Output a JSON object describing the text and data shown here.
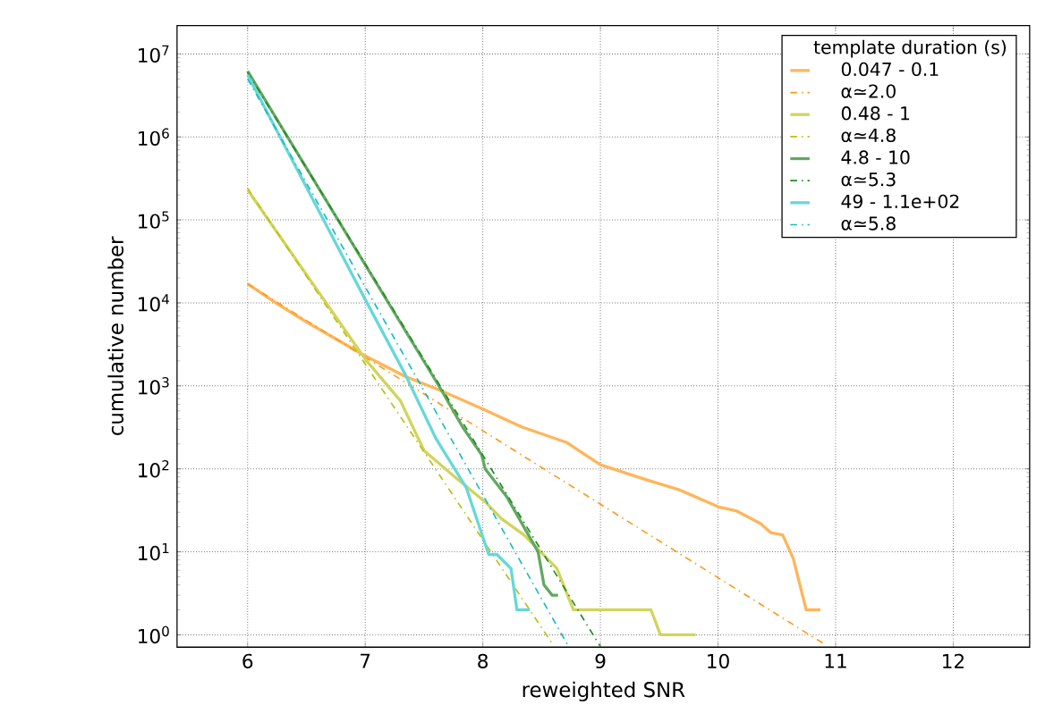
{
  "chart_data": {
    "type": "line",
    "xlabel": "reweighted SNR",
    "ylabel": "cumulative number",
    "legend_title": "template duration (s)",
    "log": "y",
    "grid": true,
    "legend": "top right",
    "xlim": [
      5.4,
      12.65
    ],
    "ylim": [
      0.71,
      22000000
    ],
    "xticks": [
      6,
      7,
      8,
      9,
      10,
      11,
      12
    ],
    "yticks": [
      {
        "value": 1,
        "label": "10$^{0}$"
      },
      {
        "value": 10,
        "label": "10$^{1}$"
      },
      {
        "value": 100,
        "label": "10$^{2}$"
      },
      {
        "value": 1000,
        "label": "10$^{3}$"
      },
      {
        "value": 10000,
        "label": "10$^{4}$"
      },
      {
        "value": 100000,
        "label": "10$^{5}$"
      },
      {
        "value": 1000000,
        "label": "10$^{6}$"
      },
      {
        "value": 10000000,
        "label": "10$^{7}$"
      }
    ],
    "series": [
      {
        "name": "0.047 - 0.1",
        "color": "#ffb55a",
        "line_style": "solid",
        "x": [
          6,
          6.25,
          6.5,
          7,
          7.34,
          7.65,
          8,
          8.33,
          8.71,
          9,
          9.39,
          9.67,
          10,
          10.16,
          10.36,
          10.45,
          10.55,
          10.64,
          10.75,
          10.87
        ],
        "values": [
          17000,
          9800,
          5900,
          2300,
          1300,
          870,
          525,
          320,
          209,
          112,
          74,
          56,
          35,
          31,
          22,
          17,
          16,
          8.3,
          2,
          2
        ]
      },
      {
        "name": "α≃2.0",
        "color": "#ff9a1a",
        "line_style": "dashed",
        "x": [
          6,
          10.9
        ],
        "values": [
          17000,
          0.78
        ]
      },
      {
        "name": "0.48 - 1",
        "color": "#d2d45c",
        "line_style": "solid",
        "x": [
          6,
          7,
          7.3,
          7.5,
          7.79,
          8.02,
          8.16,
          8.35,
          8.63,
          8.77,
          9.43,
          9.51,
          9.81
        ],
        "values": [
          230000,
          2100,
          660,
          166,
          74,
          40,
          25,
          16,
          6.3,
          2,
          2,
          1,
          1
        ]
      },
      {
        "name": "α≃4.8",
        "color": "#bdbf10",
        "line_style": "dashed",
        "x": [
          6,
          8.6
        ],
        "values": [
          240000,
          0.75
        ]
      },
      {
        "name": "4.8 - 10",
        "color": "#62a862",
        "line_style": "solid",
        "x": [
          6,
          7.64,
          7.83,
          7.99,
          8.02,
          8.2,
          8.47,
          8.52,
          8.59,
          8.64
        ],
        "values": [
          6200000,
          930,
          316,
          148,
          100,
          47,
          10,
          4,
          3,
          3
        ]
      },
      {
        "name": "α≃5.3",
        "color": "#1f8c1f",
        "line_style": "dashed",
        "x": [
          6,
          9.0
        ],
        "values": [
          6000000,
          0.72
        ]
      },
      {
        "name": "49 - 1.1e+02",
        "color": "#66d8d8",
        "line_style": "solid",
        "x": [
          6,
          7.0,
          7.34,
          7.6,
          7.86,
          8.05,
          8.12,
          8.19,
          8.24,
          8.29,
          8.4
        ],
        "values": [
          5600000,
          11000,
          1380,
          234,
          59,
          9.3,
          9.3,
          7.4,
          6.3,
          2,
          2
        ]
      },
      {
        "name": "α≃5.8",
        "color": "#1ab8c8",
        "line_style": "dashed",
        "x": [
          6,
          8.73
        ],
        "values": [
          5000000,
          0.72
        ]
      }
    ]
  }
}
